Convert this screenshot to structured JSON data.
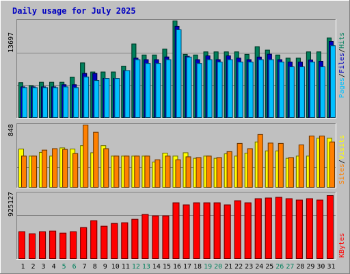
{
  "title": "Daily usage for July 2025",
  "colors": {
    "background": "#c0c0c0",
    "panel": "#c0c0c0",
    "title": "#0000c0",
    "hits": "#00805c",
    "files": "#0000c0",
    "pages": "#00c0ff",
    "visits": "#ffff00",
    "sites": "#ff8000",
    "kbytes": "#ff0000",
    "weekend_label": "#00805c",
    "day_label": "#000000"
  },
  "chart_data": [
    {
      "type": "bar",
      "title": "Daily usage for July 2025",
      "ymax_label": "13697",
      "ylim": [
        0,
        13697
      ],
      "categories": [
        "1",
        "2",
        "3",
        "4",
        "5",
        "6",
        "7",
        "8",
        "9",
        "10",
        "11",
        "12",
        "13",
        "14",
        "15",
        "16",
        "17",
        "18",
        "19",
        "20",
        "21",
        "22",
        "23",
        "24",
        "25",
        "26",
        "27",
        "28",
        "29",
        "30",
        "31"
      ],
      "weekend_days": [
        "5",
        "6",
        "12",
        "13",
        "19",
        "20",
        "26",
        "27"
      ],
      "legend": [
        "Pages",
        "Files",
        "Hits"
      ],
      "series": [
        {
          "name": "Hits",
          "values": [
            4990,
            4570,
            5050,
            5050,
            5050,
            5780,
            7780,
            6500,
            6500,
            6500,
            7330,
            10450,
            8890,
            8890,
            9730,
            13690,
            8980,
            8890,
            9330,
            9330,
            9330,
            9330,
            8980,
            10060,
            9580,
            8890,
            8450,
            8450,
            9330,
            9330,
            11300
          ]
        },
        {
          "name": "Files",
          "values": [
            4400,
            4400,
            4400,
            4400,
            4700,
            4700,
            6300,
            6300,
            5580,
            5580,
            6700,
            8450,
            8230,
            8230,
            8610,
            12930,
            8700,
            8230,
            8780,
            8230,
            8780,
            8450,
            8230,
            8600,
            9000,
            8230,
            7900,
            7900,
            8200,
            8000,
            10800
          ]
        },
        {
          "name": "Pages",
          "values": [
            4300,
            4300,
            4300,
            4300,
            4400,
            4300,
            5800,
            5300,
            5580,
            5580,
            6700,
            8230,
            7700,
            7700,
            8230,
            12450,
            8600,
            7700,
            8230,
            7900,
            8230,
            7900,
            7900,
            8230,
            8230,
            7900,
            7230,
            7230,
            7900,
            7230,
            10200
          ]
        }
      ]
    },
    {
      "type": "bar",
      "ymax_label": "848",
      "ylim": [
        0,
        848
      ],
      "categories": [
        "1",
        "2",
        "3",
        "4",
        "5",
        "6",
        "7",
        "8",
        "9",
        "10",
        "11",
        "12",
        "13",
        "14",
        "15",
        "16",
        "17",
        "18",
        "19",
        "20",
        "21",
        "22",
        "23",
        "24",
        "25",
        "26",
        "27",
        "28",
        "29",
        "30",
        "31"
      ],
      "legend": [
        "Sites",
        "Visits"
      ],
      "series": [
        {
          "name": "Visits",
          "values": [
            525,
            430,
            480,
            430,
            540,
            525,
            570,
            475,
            570,
            430,
            430,
            430,
            430,
            350,
            470,
            430,
            475,
            400,
            430,
            400,
            460,
            430,
            470,
            620,
            500,
            500,
            400,
            430,
            430,
            670,
            670
          ]
        },
        {
          "name": "Sites",
          "values": [
            430,
            430,
            510,
            530,
            520,
            465,
            848,
            750,
            530,
            430,
            430,
            430,
            430,
            380,
            430,
            380,
            420,
            410,
            430,
            410,
            490,
            600,
            530,
            720,
            605,
            600,
            410,
            580,
            700,
            700,
            620
          ]
        }
      ]
    },
    {
      "type": "bar",
      "ymax_label": "925127",
      "ylim": [
        0,
        925127
      ],
      "categories": [
        "1",
        "2",
        "3",
        "4",
        "5",
        "6",
        "7",
        "8",
        "9",
        "10",
        "11",
        "12",
        "13",
        "14",
        "15",
        "16",
        "17",
        "18",
        "19",
        "20",
        "21",
        "22",
        "23",
        "24",
        "25",
        "26",
        "27",
        "28",
        "29",
        "30",
        "31"
      ],
      "legend": [
        "KBytes"
      ],
      "series": [
        {
          "name": "KBytes",
          "values": [
            400000,
            370000,
            400000,
            410000,
            380000,
            400000,
            460000,
            560000,
            480000,
            520000,
            530000,
            580000,
            650000,
            630000,
            630000,
            820000,
            790000,
            820000,
            820000,
            820000,
            790000,
            850000,
            820000,
            880000,
            890000,
            900000,
            880000,
            860000,
            880000,
            860000,
            925127
          ]
        }
      ]
    }
  ]
}
